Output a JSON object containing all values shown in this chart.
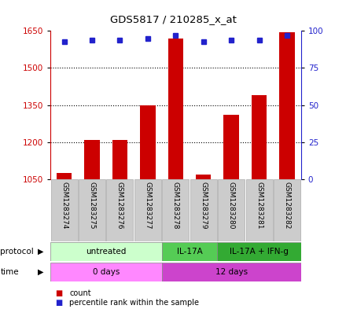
{
  "title": "GDS5817 / 210285_x_at",
  "samples": [
    "GSM1283274",
    "GSM1283275",
    "GSM1283276",
    "GSM1283277",
    "GSM1283278",
    "GSM1283279",
    "GSM1283280",
    "GSM1283281",
    "GSM1283282"
  ],
  "counts": [
    1075,
    1210,
    1210,
    1350,
    1620,
    1070,
    1310,
    1390,
    1645
  ],
  "percentile_ranks": [
    93,
    94,
    94,
    95,
    97,
    93,
    94,
    94,
    97
  ],
  "ylim_left": [
    1050,
    1650
  ],
  "ylim_right": [
    0,
    100
  ],
  "yticks_left": [
    1050,
    1200,
    1350,
    1500,
    1650
  ],
  "yticks_right": [
    0,
    25,
    50,
    75,
    100
  ],
  "bar_color": "#cc0000",
  "dot_color": "#2222cc",
  "bar_bottom": 1050,
  "protocol_groups": [
    {
      "label": "untreated",
      "start": 0,
      "end": 4,
      "color": "#ccffcc"
    },
    {
      "label": "IL-17A",
      "start": 4,
      "end": 6,
      "color": "#55cc55"
    },
    {
      "label": "IL-17A + IFN-g",
      "start": 6,
      "end": 9,
      "color": "#33aa33"
    }
  ],
  "time_groups": [
    {
      "label": "0 days",
      "start": 0,
      "end": 4,
      "color": "#ff88ff"
    },
    {
      "label": "12 days",
      "start": 4,
      "end": 9,
      "color": "#cc44cc"
    }
  ],
  "legend_count_color": "#cc0000",
  "legend_dot_color": "#2222cc",
  "grid_color": "#555555",
  "axis_left_color": "#cc0000",
  "axis_right_color": "#2222cc"
}
